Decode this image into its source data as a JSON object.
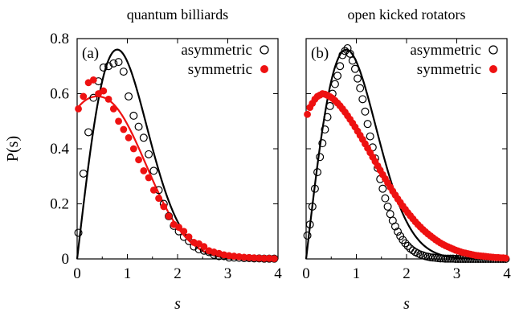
{
  "colors": {
    "asymmetric": "#000000",
    "symmetric": "#ee1111"
  },
  "chart_data": [
    {
      "type": "scatter",
      "panel": "(a)",
      "title": "quantum billiards",
      "xlabel": "s",
      "ylabel": "P(s)",
      "xlim": [
        0,
        4
      ],
      "ylim": [
        0,
        0.8
      ],
      "xticks": [
        "0",
        "1",
        "2",
        "3",
        "4"
      ],
      "yticks": [
        "0",
        "0.2",
        "0.4",
        "0.6",
        "0.8"
      ],
      "legend_position": "top-right",
      "series": [
        {
          "name": "asymmetric",
          "marker": "open-circle",
          "x": [
            0.025,
            0.125,
            0.225,
            0.325,
            0.425,
            0.525,
            0.625,
            0.725,
            0.825,
            0.925,
            1.025,
            1.125,
            1.225,
            1.325,
            1.425,
            1.525,
            1.625,
            1.725,
            1.825,
            1.925,
            2.025,
            2.125,
            2.225,
            2.325,
            2.425,
            2.525,
            2.625,
            2.725,
            2.825,
            2.925,
            3.025,
            3.125,
            3.225,
            3.325,
            3.425,
            3.525,
            3.625,
            3.725,
            3.825,
            3.925
          ],
          "y": [
            0.095,
            0.31,
            0.46,
            0.585,
            0.645,
            0.695,
            0.7,
            0.71,
            0.715,
            0.68,
            0.59,
            0.52,
            0.48,
            0.44,
            0.38,
            0.32,
            0.25,
            0.2,
            0.155,
            0.12,
            0.1,
            0.08,
            0.065,
            0.045,
            0.035,
            0.03,
            0.025,
            0.015,
            0.01,
            0.01,
            0.005,
            0.005,
            0.004,
            0.003,
            0.003,
            0.002,
            0.002,
            0.001,
            0.001,
            0.001
          ]
        },
        {
          "name": "symmetric",
          "marker": "filled-circle",
          "x": [
            0.025,
            0.125,
            0.225,
            0.325,
            0.425,
            0.525,
            0.625,
            0.725,
            0.825,
            0.925,
            1.025,
            1.125,
            1.225,
            1.325,
            1.425,
            1.525,
            1.625,
            1.725,
            1.825,
            1.925,
            2.025,
            2.125,
            2.225,
            2.325,
            2.425,
            2.525,
            2.625,
            2.725,
            2.825,
            2.925,
            3.025,
            3.125,
            3.225,
            3.325,
            3.425,
            3.525,
            3.625,
            3.725,
            3.825,
            3.925
          ],
          "y": [
            0.545,
            0.59,
            0.64,
            0.65,
            0.6,
            0.61,
            0.58,
            0.545,
            0.5,
            0.47,
            0.44,
            0.4,
            0.36,
            0.32,
            0.295,
            0.25,
            0.22,
            0.19,
            0.155,
            0.125,
            0.115,
            0.1,
            0.08,
            0.06,
            0.055,
            0.045,
            0.03,
            0.025,
            0.02,
            0.015,
            0.012,
            0.01,
            0.008,
            0.006,
            0.005,
            0.004,
            0.003,
            0.002,
            0.002,
            0.001
          ]
        }
      ],
      "curves": [
        {
          "series": "asymmetric",
          "model": "wigner-goe"
        },
        {
          "series": "symmetric",
          "model": "fit"
        }
      ]
    },
    {
      "type": "scatter",
      "panel": "(b)",
      "title": "open kicked rotators",
      "xlabel": "s",
      "xlim": [
        0,
        4
      ],
      "ylim": [
        0,
        0.8
      ],
      "xticks": [
        "0",
        "1",
        "2",
        "3",
        "4"
      ],
      "legend_position": "top-right",
      "series": [
        {
          "name": "asymmetric",
          "marker": "open-circle",
          "x": [
            0.025,
            0.075,
            0.125,
            0.175,
            0.225,
            0.275,
            0.325,
            0.375,
            0.425,
            0.475,
            0.525,
            0.575,
            0.625,
            0.675,
            0.725,
            0.775,
            0.825,
            0.875,
            0.925,
            0.975,
            1.025,
            1.075,
            1.125,
            1.175,
            1.225,
            1.275,
            1.325,
            1.375,
            1.425,
            1.475,
            1.525,
            1.575,
            1.625,
            1.675,
            1.725,
            1.775,
            1.825,
            1.875,
            1.925,
            1.975,
            2.025,
            2.075,
            2.125,
            2.175,
            2.225,
            2.275,
            2.325,
            2.375,
            2.425,
            2.475,
            2.525,
            2.575,
            2.625,
            2.675,
            2.725,
            2.775,
            2.825,
            2.875,
            2.925,
            2.975,
            3.025,
            3.075,
            3.125,
            3.175,
            3.225,
            3.275,
            3.325,
            3.375,
            3.425,
            3.475,
            3.525,
            3.575,
            3.625,
            3.675,
            3.725,
            3.775,
            3.825,
            3.875,
            3.925,
            3.975
          ],
          "y": [
            0.085,
            0.125,
            0.19,
            0.255,
            0.315,
            0.37,
            0.42,
            0.47,
            0.515,
            0.555,
            0.6,
            0.635,
            0.665,
            0.7,
            0.74,
            0.755,
            0.765,
            0.745,
            0.72,
            0.69,
            0.655,
            0.62,
            0.58,
            0.535,
            0.49,
            0.445,
            0.405,
            0.365,
            0.33,
            0.29,
            0.255,
            0.22,
            0.19,
            0.163,
            0.139,
            0.118,
            0.099,
            0.083,
            0.069,
            0.057,
            0.047,
            0.038,
            0.031,
            0.025,
            0.02,
            0.016,
            0.013,
            0.01,
            0.008,
            0.006,
            0.005,
            0.004,
            0.003,
            0.002,
            0.002,
            0.001,
            0.001,
            0.001,
            0.001,
            0,
            0,
            0,
            0,
            0,
            0,
            0,
            0,
            0,
            0,
            0,
            0,
            0,
            0,
            0,
            0,
            0,
            0,
            0,
            0,
            0
          ]
        },
        {
          "name": "symmetric",
          "marker": "filled-circle",
          "x": [
            0.025,
            0.075,
            0.125,
            0.175,
            0.225,
            0.275,
            0.325,
            0.375,
            0.425,
            0.475,
            0.525,
            0.575,
            0.625,
            0.675,
            0.725,
            0.775,
            0.825,
            0.875,
            0.925,
            0.975,
            1.025,
            1.075,
            1.125,
            1.175,
            1.225,
            1.275,
            1.325,
            1.375,
            1.425,
            1.475,
            1.525,
            1.575,
            1.625,
            1.675,
            1.725,
            1.775,
            1.825,
            1.875,
            1.925,
            1.975,
            2.025,
            2.075,
            2.125,
            2.175,
            2.225,
            2.275,
            2.325,
            2.375,
            2.425,
            2.475,
            2.525,
            2.575,
            2.625,
            2.675,
            2.725,
            2.775,
            2.825,
            2.875,
            2.925,
            2.975,
            3.025,
            3.075,
            3.125,
            3.175,
            3.225,
            3.275,
            3.325,
            3.375,
            3.425,
            3.475,
            3.525,
            3.575,
            3.625,
            3.675,
            3.725,
            3.775,
            3.825,
            3.875,
            3.925,
            3.975
          ],
          "y": [
            0.525,
            0.55,
            0.565,
            0.58,
            0.59,
            0.595,
            0.6,
            0.598,
            0.594,
            0.589,
            0.583,
            0.575,
            0.566,
            0.556,
            0.545,
            0.533,
            0.52,
            0.507,
            0.493,
            0.479,
            0.464,
            0.449,
            0.434,
            0.418,
            0.402,
            0.386,
            0.37,
            0.354,
            0.338,
            0.322,
            0.306,
            0.291,
            0.276,
            0.261,
            0.246,
            0.232,
            0.218,
            0.205,
            0.192,
            0.18,
            0.168,
            0.157,
            0.146,
            0.135,
            0.125,
            0.116,
            0.107,
            0.099,
            0.091,
            0.084,
            0.077,
            0.07,
            0.064,
            0.058,
            0.053,
            0.048,
            0.044,
            0.04,
            0.036,
            0.032,
            0.029,
            0.026,
            0.023,
            0.021,
            0.019,
            0.017,
            0.015,
            0.013,
            0.012,
            0.011,
            0.01,
            0.009,
            0.008,
            0.007,
            0.006,
            0.005,
            0.005,
            0.004,
            0.004,
            0.003
          ]
        }
      ],
      "curves": [
        {
          "series": "asymmetric",
          "model": "wigner-goe"
        }
      ]
    }
  ]
}
